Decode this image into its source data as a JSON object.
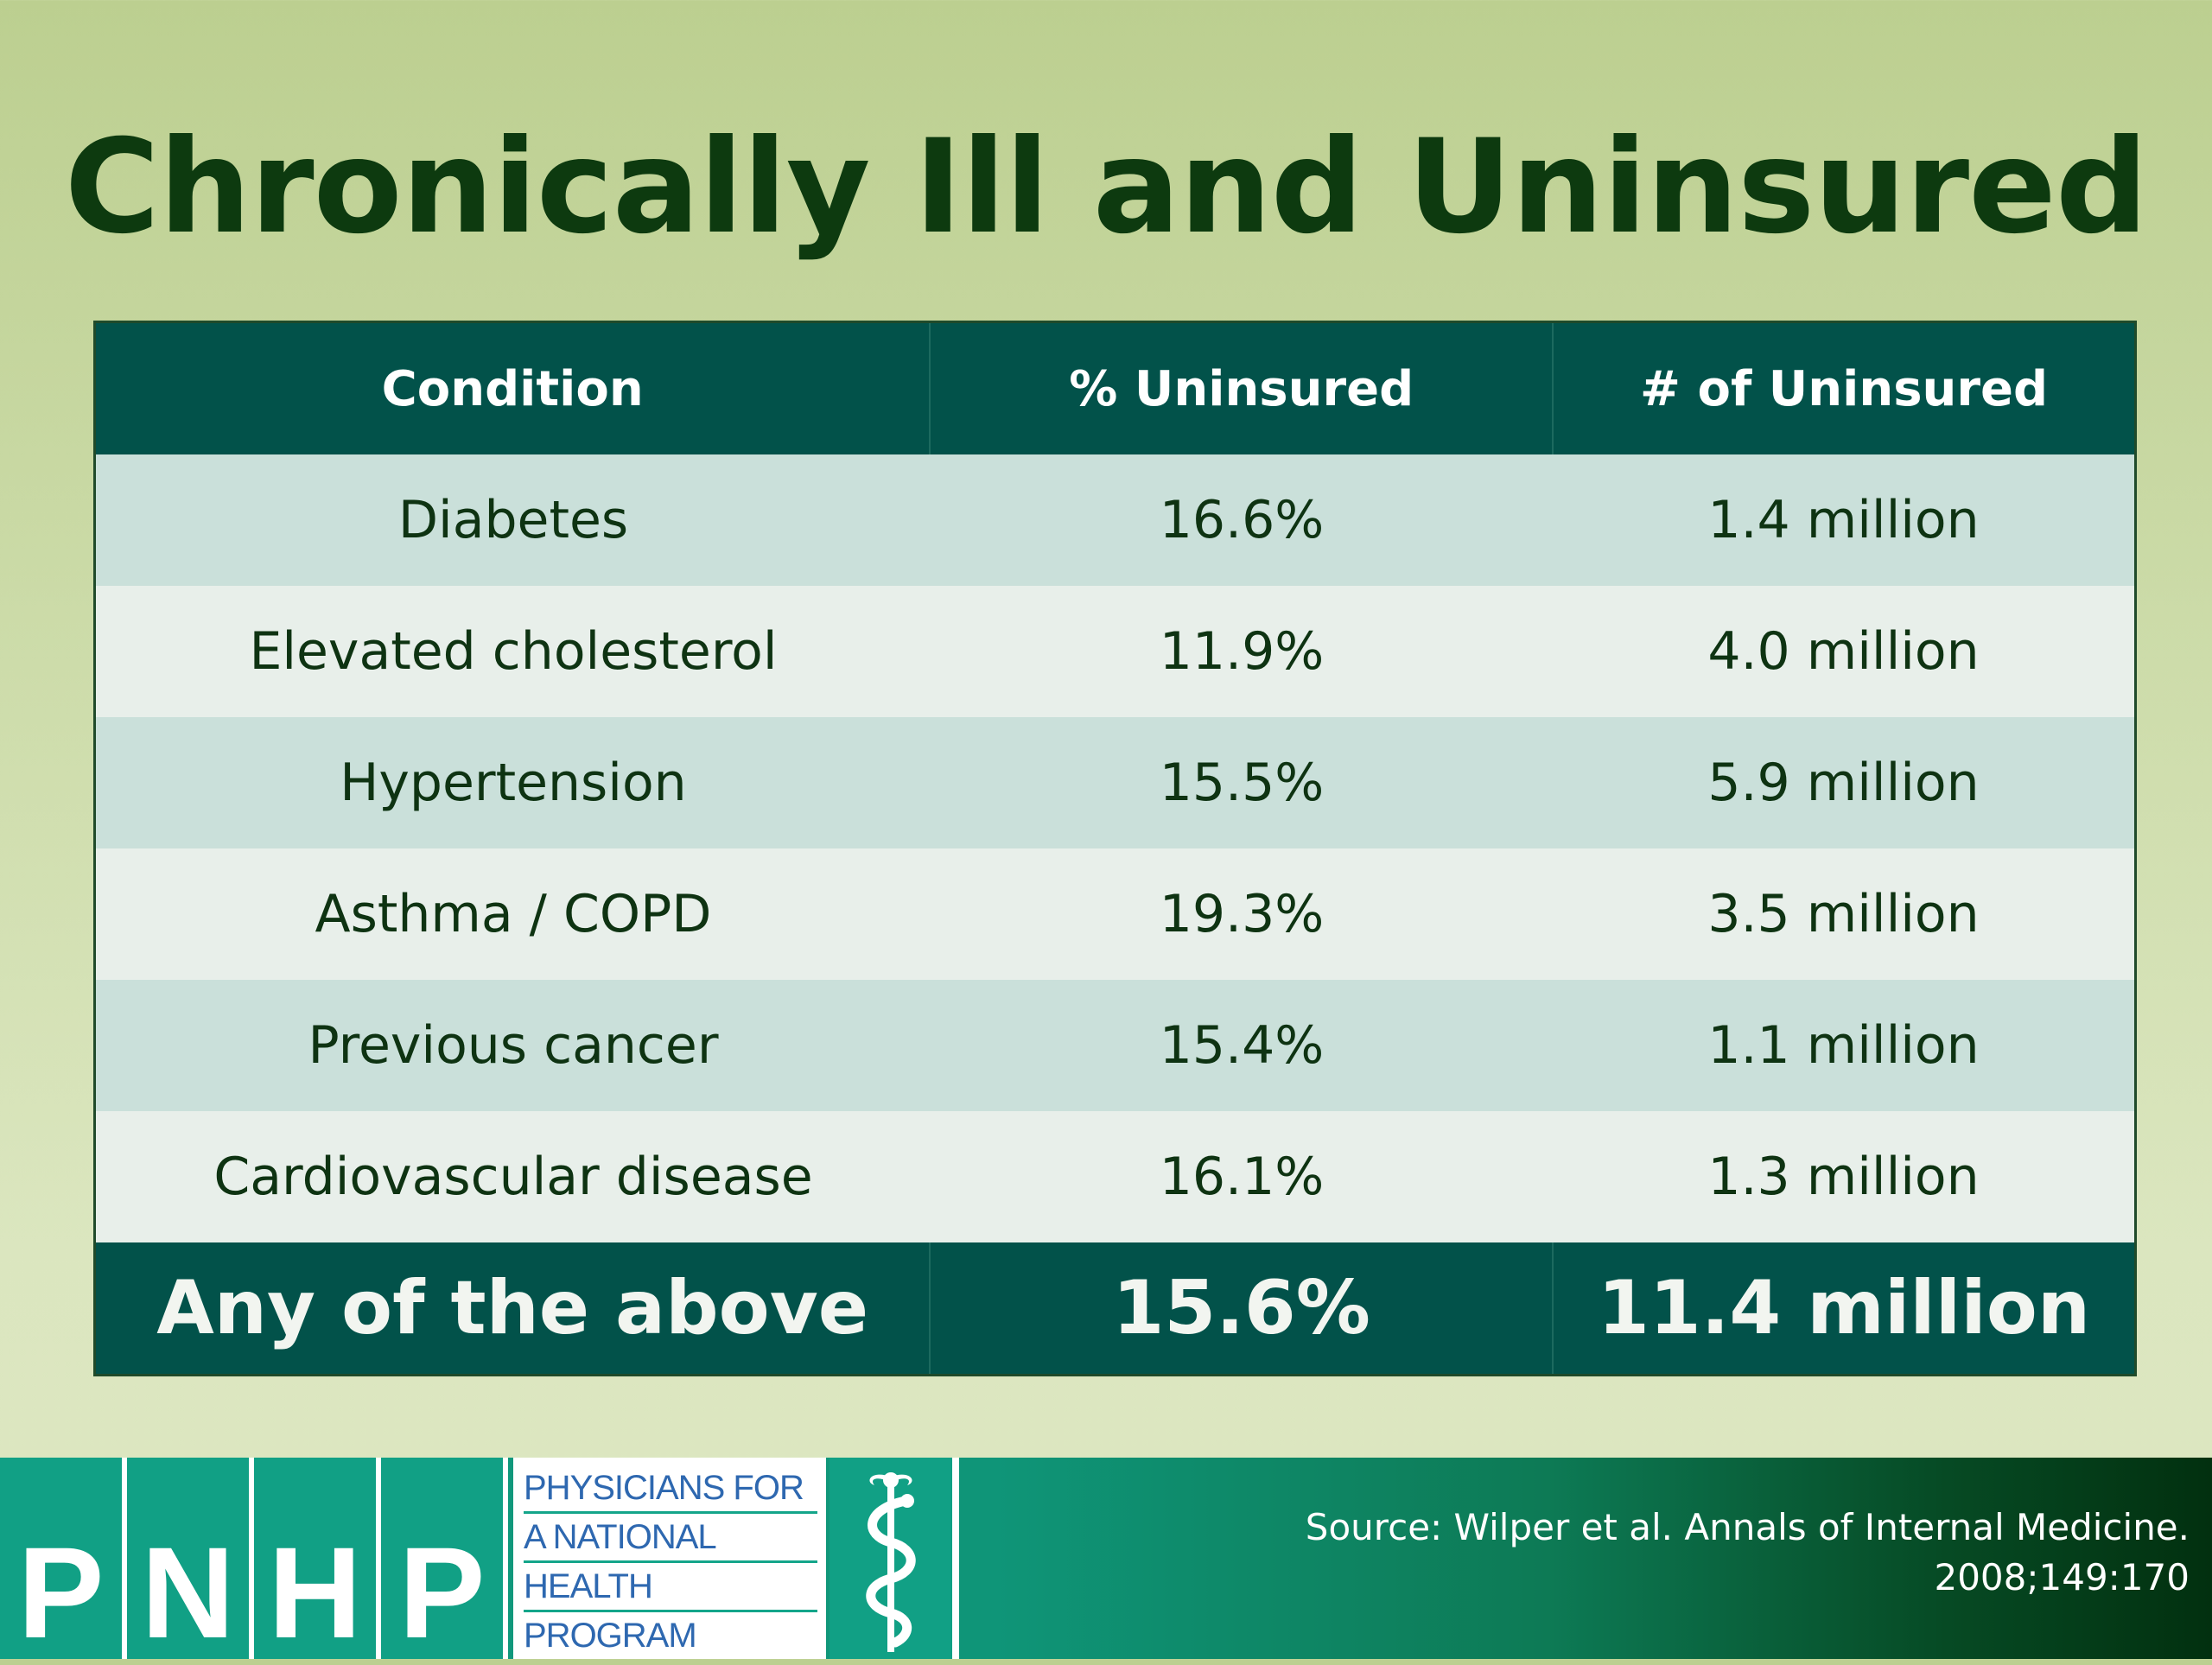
{
  "title": "Chronically Ill and Uninsured",
  "table": {
    "headers": [
      "Condition",
      "% Uninsured",
      "# of Uninsured"
    ],
    "rows": [
      [
        "Diabetes",
        "16.6%",
        "1.4 million"
      ],
      [
        "Elevated cholesterol",
        "11.9%",
        "4.0 million"
      ],
      [
        "Hypertension",
        "15.5%",
        "5.9 million"
      ],
      [
        "Asthma / COPD",
        "19.3%",
        "3.5 million"
      ],
      [
        "Previous cancer",
        "15.4%",
        "1.1 million"
      ],
      [
        "Cardiovascular disease",
        "16.1%",
        "1.3 million"
      ]
    ],
    "total": [
      "Any of the above",
      "15.6%",
      "11.4 million"
    ]
  },
  "footer": {
    "logo_letters": [
      "P",
      "N",
      "H",
      "P"
    ],
    "logo_text": [
      "PHYSICIANS FOR",
      "A NATIONAL",
      "HEALTH",
      "PROGRAM"
    ],
    "logo_icon": "caduceus-icon",
    "source_line1": "Source: Wilper et al. Annals of Internal Medicine.",
    "source_line2": "2008;149:170"
  },
  "colors": {
    "header_bg": "#02524a",
    "row_odd": "#cae0da",
    "row_even": "#e8efea",
    "title": "#0d3a0f"
  }
}
